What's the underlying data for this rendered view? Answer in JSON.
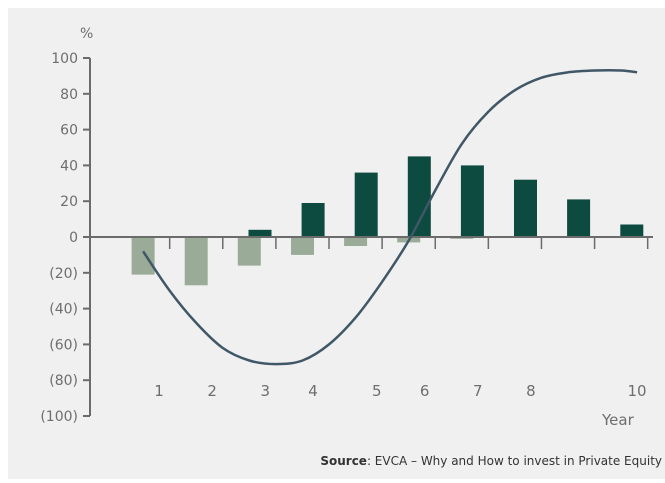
{
  "chart_data": {
    "type": "bar+line",
    "unit_label": "%",
    "xlabel": "Year",
    "y_ticks": [
      "100",
      "80",
      "60",
      "40",
      "20",
      "0",
      "(20)",
      "(40)",
      "(60)",
      "(80)",
      "(100)"
    ],
    "y_tick_values": [
      100,
      80,
      60,
      40,
      20,
      0,
      -20,
      -40,
      -60,
      -80,
      -100
    ],
    "ylim": [
      -100,
      100
    ],
    "grid": false,
    "legend": "none",
    "x_tick_labels": [
      {
        "label": "1",
        "x": 1.3
      },
      {
        "label": "2",
        "x": 2.3
      },
      {
        "label": "3",
        "x": 3.3
      },
      {
        "label": "4",
        "x": 4.2
      },
      {
        "label": "5",
        "x": 5.4
      },
      {
        "label": "6",
        "x": 6.3
      },
      {
        "label": "7",
        "x": 7.3
      },
      {
        "label": "8",
        "x": 8.3
      },
      {
        "label": "10",
        "x": 10.3
      }
    ],
    "bars": [
      {
        "x": 1.0,
        "value": -21,
        "color": "#9aac98"
      },
      {
        "x": 2.0,
        "value": -27,
        "color": "#9aac98"
      },
      {
        "x": 3.0,
        "value": -16,
        "color": "#9aac98"
      },
      {
        "x": 3.2,
        "value": 4,
        "color": "#0d4a40"
      },
      {
        "x": 4.0,
        "value": -10,
        "color": "#9aac98"
      },
      {
        "x": 4.2,
        "value": 19,
        "color": "#0d4a40"
      },
      {
        "x": 5.0,
        "value": -5,
        "color": "#9aac98"
      },
      {
        "x": 5.2,
        "value": 36,
        "color": "#0d4a40"
      },
      {
        "x": 6.0,
        "value": -3,
        "color": "#9aac98"
      },
      {
        "x": 6.2,
        "value": 45,
        "color": "#0d4a40"
      },
      {
        "x": 7.0,
        "value": -1,
        "color": "#9aac98"
      },
      {
        "x": 7.2,
        "value": 40,
        "color": "#0d4a40"
      },
      {
        "x": 8.2,
        "value": 32,
        "color": "#0d4a40"
      },
      {
        "x": 9.2,
        "value": 21,
        "color": "#0d4a40"
      },
      {
        "x": 10.2,
        "value": 7,
        "color": "#0d4a40"
      }
    ],
    "line": {
      "color": "#3f5766",
      "points": [
        [
          1.0,
          -8
        ],
        [
          1.5,
          -30
        ],
        [
          2.0,
          -48
        ],
        [
          2.5,
          -62
        ],
        [
          3.0,
          -69
        ],
        [
          3.5,
          -71
        ],
        [
          4.0,
          -69
        ],
        [
          4.5,
          -60
        ],
        [
          5.0,
          -45
        ],
        [
          5.5,
          -25
        ],
        [
          6.0,
          -2
        ],
        [
          6.5,
          26
        ],
        [
          7.0,
          52
        ],
        [
          7.5,
          70
        ],
        [
          8.0,
          82
        ],
        [
          8.5,
          89
        ],
        [
          9.0,
          92
        ],
        [
          9.5,
          93
        ],
        [
          10.0,
          93
        ],
        [
          10.3,
          92
        ]
      ]
    }
  },
  "source": {
    "label": "Source",
    "text": ": EVCA – Why and How to invest in Private Equity"
  },
  "colors": {
    "panel_background": "#f0f0f0",
    "axis": "#6b6b6b",
    "text": "#6e6e6e",
    "source_text": "#333333"
  }
}
